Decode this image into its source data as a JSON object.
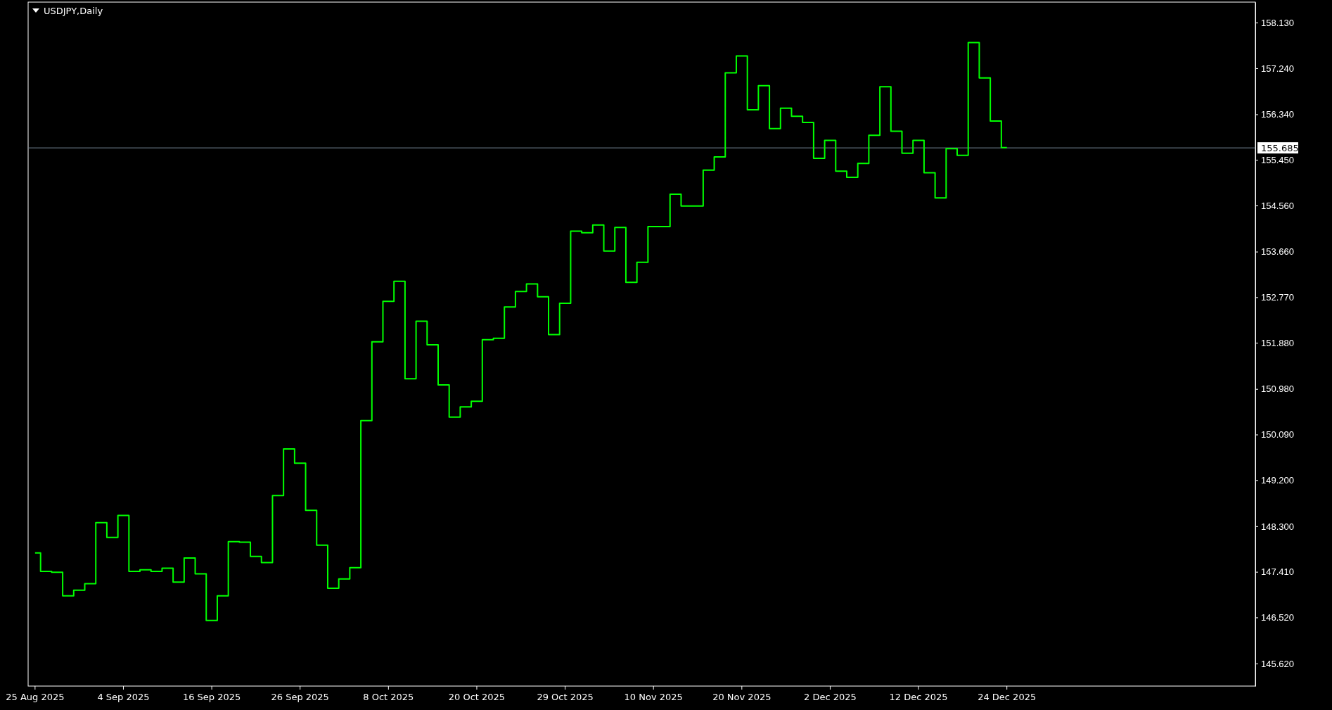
{
  "chart_data": {
    "type": "step",
    "title": "USDJPY,Daily",
    "categories": [
      "25 Aug 2025",
      null,
      null,
      null,
      null,
      null,
      null,
      null,
      "4 Sep 2025",
      null,
      null,
      null,
      null,
      null,
      null,
      null,
      "16 Sep 2025",
      null,
      null,
      null,
      null,
      null,
      null,
      null,
      "26 Sep 2025",
      null,
      null,
      null,
      null,
      null,
      null,
      null,
      "8 Oct 2025",
      null,
      null,
      null,
      null,
      null,
      null,
      null,
      "20 Oct 2025",
      null,
      null,
      null,
      null,
      null,
      null,
      null,
      "29 Oct 2025",
      null,
      null,
      null,
      null,
      null,
      null,
      null,
      "10 Nov 2025",
      null,
      null,
      null,
      null,
      null,
      null,
      null,
      "20 Nov 2025",
      null,
      null,
      null,
      null,
      null,
      null,
      null,
      "2 Dec 2025",
      null,
      null,
      null,
      null,
      null,
      null,
      null,
      "12 Dec 2025",
      null,
      null,
      null,
      null,
      null,
      null,
      null,
      "24 Dec 2025",
      null,
      null,
      null,
      null,
      null,
      null,
      null,
      null,
      null,
      null,
      null,
      null,
      null,
      null,
      null,
      null,
      null,
      null,
      null,
      null,
      null,
      null
    ],
    "series": [
      {
        "color": "#00ff00",
        "values": [
          147.78,
          147.42,
          147.4,
          146.94,
          147.05,
          147.18,
          148.37,
          148.08,
          148.51,
          147.42,
          147.45,
          147.42,
          147.48,
          147.21,
          147.68,
          147.37,
          146.46,
          146.94,
          148.0,
          147.99,
          147.71,
          147.59,
          148.9,
          149.81,
          149.53,
          148.61,
          147.93,
          147.09,
          147.27,
          147.49,
          150.36,
          151.9,
          152.69,
          153.08,
          151.18,
          152.3,
          151.84,
          151.06,
          150.43,
          150.63,
          150.74,
          151.94,
          151.97,
          152.58,
          152.88,
          153.03,
          152.78,
          152.04,
          152.65,
          154.06,
          154.03,
          154.18,
          153.67,
          154.13,
          153.06,
          153.45,
          154.15,
          154.15,
          154.78,
          154.55,
          154.55,
          155.25,
          155.51,
          157.15,
          157.48,
          156.43,
          156.9,
          156.06,
          156.46,
          156.3,
          156.18,
          155.48,
          155.83,
          155.23,
          155.11,
          155.38,
          155.93,
          156.88,
          156.01,
          155.58,
          155.83,
          155.2,
          154.71,
          155.67,
          155.54,
          157.74,
          157.05,
          156.21,
          155.69,
          null,
          null,
          null,
          null,
          null,
          null,
          null,
          null,
          null,
          null,
          null,
          null,
          null,
          null,
          null,
          null,
          null,
          null,
          null,
          null,
          null,
          null
        ]
      }
    ],
    "ylim": [
      145.18,
      158.53
    ],
    "yticks": [
      {
        "value": 158.13,
        "label": "158.130"
      },
      {
        "value": 157.24,
        "label": "157.240"
      },
      {
        "value": 156.34,
        "label": "156.340"
      },
      {
        "value": 155.45,
        "label": "155.450"
      },
      {
        "value": 154.56,
        "label": "154.560"
      },
      {
        "value": 153.66,
        "label": "153.660"
      },
      {
        "value": 152.77,
        "label": "152.770"
      },
      {
        "value": 151.88,
        "label": "151.880"
      },
      {
        "value": 150.98,
        "label": "150.980"
      },
      {
        "value": 150.09,
        "label": "150.090"
      },
      {
        "value": 149.2,
        "label": "149.200"
      },
      {
        "value": 148.3,
        "label": "148.300"
      },
      {
        "value": 147.41,
        "label": "147.410"
      },
      {
        "value": 146.52,
        "label": "146.520"
      },
      {
        "value": 145.62,
        "label": "145.620"
      }
    ],
    "ref_lines": [
      {
        "axis": "y",
        "value": 155.685,
        "label": "155.685",
        "color": "#778899"
      }
    ]
  }
}
